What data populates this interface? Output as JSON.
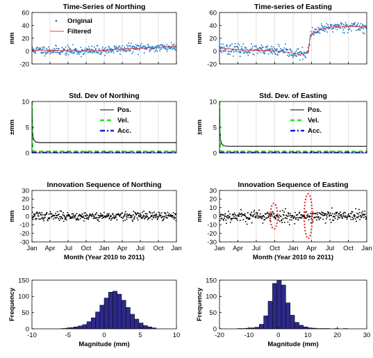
{
  "chart_data": [
    {
      "type": "line",
      "title": "Time-Series of Northing",
      "xlabel": "",
      "ylabel": "mm",
      "xlim": [
        0,
        730
      ],
      "ylim": [
        -20,
        60
      ],
      "yticks": [
        "-20",
        "0",
        "20",
        "40",
        "60"
      ],
      "xtick_count": 9,
      "grid": "vertical",
      "legend": "top-left",
      "series": [
        {
          "name": "Original",
          "style": "dots",
          "color": "#1e78c8",
          "noise": 3.5,
          "seed": 11,
          "trend_x": [
            0,
            120,
            240,
            360,
            480,
            600,
            730
          ],
          "trend_y": [
            1.5,
            1,
            0,
            1,
            4,
            5,
            7
          ]
        },
        {
          "name": "Filtered",
          "style": "line",
          "color": "#e03c3c",
          "x": [
            0,
            120,
            240,
            360,
            480,
            600,
            730
          ],
          "y": [
            1.5,
            1,
            0,
            1,
            4,
            5,
            7
          ]
        }
      ]
    },
    {
      "type": "line",
      "title": "Time-series of Easting",
      "xlabel": "",
      "ylabel": "mm",
      "xlim": [
        0,
        730
      ],
      "ylim": [
        -20,
        60
      ],
      "yticks": [
        "-20",
        "0",
        "20",
        "40",
        "60"
      ],
      "xtick_count": 9,
      "grid": "vertical",
      "series": [
        {
          "style": "dots",
          "color": "#1e78c8",
          "noise": 4,
          "seed": 23,
          "trend_x": [
            0,
            100,
            200,
            300,
            400,
            440,
            450,
            500,
            560,
            620,
            680,
            730
          ],
          "trend_y": [
            5,
            2,
            1,
            0,
            -5,
            -3,
            25,
            33,
            38,
            39,
            38,
            37
          ]
        },
        {
          "style": "line",
          "color": "#e03c3c",
          "x": [
            0,
            100,
            200,
            300,
            400,
            440,
            450,
            500,
            560,
            620,
            680,
            730
          ],
          "y": [
            5,
            2,
            1,
            0,
            -5,
            -3,
            25,
            33,
            38,
            39,
            38,
            37
          ]
        }
      ]
    },
    {
      "type": "line",
      "title": "Std. Dev of Northing",
      "xlabel": "",
      "ylabel": "±mm",
      "xlim": [
        0,
        730
      ],
      "ylim": [
        0,
        10
      ],
      "yticks": [
        "0",
        "5",
        "10"
      ],
      "xtick_count": 9,
      "grid": "vertical",
      "legend": "top-right",
      "series": [
        {
          "name": "Pos.",
          "style": "solid",
          "color": "#000000",
          "x": [
            0,
            2,
            5,
            10,
            20,
            40,
            730
          ],
          "y": [
            9,
            5,
            3.2,
            2.5,
            2.1,
            2.0,
            2.0
          ]
        },
        {
          "name": "Vel.",
          "style": "dashed",
          "color": "#22dd22",
          "x": [
            0,
            0.5,
            1,
            2,
            4,
            10,
            730
          ],
          "y": [
            10,
            9,
            6,
            2,
            0.5,
            0.3,
            0.3
          ]
        },
        {
          "name": "Acc.",
          "style": "dashdot",
          "color": "#1a1adc",
          "x": [
            0,
            730
          ],
          "y": [
            0.05,
            0.05
          ]
        }
      ]
    },
    {
      "type": "line",
      "title": "Std. Dev. of Easting",
      "xlabel": "",
      "ylabel": "±mm",
      "xlim": [
        0,
        730
      ],
      "ylim": [
        0,
        10
      ],
      "yticks": [
        "0",
        "5",
        "10"
      ],
      "xtick_count": 9,
      "grid": "vertical",
      "legend": "top-right",
      "series": [
        {
          "name": "Pos.",
          "style": "solid",
          "color": "#000000",
          "x": [
            0,
            2,
            5,
            10,
            20,
            40,
            730
          ],
          "y": [
            9,
            4.5,
            2.6,
            1.8,
            1.4,
            1.3,
            1.3
          ]
        },
        {
          "name": "Vel.",
          "style": "dashed",
          "color": "#22dd22",
          "x": [
            0,
            0.5,
            1,
            2,
            4,
            10,
            730
          ],
          "y": [
            10,
            9,
            6,
            2,
            0.5,
            0.3,
            0.3
          ]
        },
        {
          "name": "Acc.",
          "style": "dashdot",
          "color": "#1a1adc",
          "x": [
            0,
            730
          ],
          "y": [
            0.05,
            0.05
          ]
        }
      ]
    },
    {
      "type": "scatter",
      "title": "Innovation Sequence of Northing",
      "xlabel": "Month (Year 2010 to 2011)",
      "ylabel": "mm",
      "xlim": [
        0,
        730
      ],
      "ylim": [
        -30,
        30
      ],
      "yticks": [
        "-30",
        "-20",
        "-10",
        "0",
        "10",
        "20",
        "30"
      ],
      "xticks": [
        "Jan",
        "Apr",
        "Jul",
        "Oct",
        "Jan",
        "Apr",
        "Jul",
        "Oct",
        "Jan"
      ],
      "grid": "vertical",
      "series": [
        {
          "style": "dots",
          "color": "#000000",
          "noise": 2.5,
          "seed": 37,
          "trend_x": [
            0,
            730
          ],
          "trend_y": [
            0,
            0
          ]
        }
      ]
    },
    {
      "type": "scatter",
      "title": "Innovation Sequence of Easting",
      "xlabel": "Month (Year 2010 to 2011)",
      "ylabel": "mm",
      "xlim": [
        0,
        730
      ],
      "ylim": [
        -30,
        30
      ],
      "yticks": [
        "-30",
        "-20",
        "-10",
        "0",
        "10",
        "20",
        "30"
      ],
      "xticks": [
        "Jan",
        "Apr",
        "Jul",
        "Oct",
        "Jan",
        "Apr",
        "Jul",
        "Oct",
        "Jan"
      ],
      "grid": "vertical",
      "series": [
        {
          "style": "dots",
          "color": "#000000",
          "noise": 3.5,
          "seed": 53,
          "trend_x": [
            0,
            730
          ],
          "trend_y": [
            0,
            0
          ]
        }
      ],
      "annotations": [
        {
          "shape": "ellipse",
          "color": "#e01818",
          "cx": 270,
          "cy": 0,
          "rx": 18,
          "ry": 15
        },
        {
          "shape": "ellipse",
          "color": "#e01818",
          "cx": 440,
          "cy": 0,
          "rx": 20,
          "ry": 26
        }
      ]
    },
    {
      "type": "bar",
      "title": "",
      "xlabel": "Magnitude (mm)",
      "ylabel": "Frequency",
      "xlim": [
        -10,
        10
      ],
      "ylim": [
        0,
        150
      ],
      "xticks": [
        "-10",
        "-5",
        "0",
        "5",
        "10"
      ],
      "yticks": [
        "0",
        "50",
        "100",
        "150"
      ],
      "bar_color": "#2e2a8a",
      "bins_start": -6,
      "bin_width": 0.6,
      "values": [
        1,
        2,
        4,
        6,
        9,
        13,
        22,
        34,
        52,
        73,
        95,
        113,
        116,
        107,
        88,
        66,
        45,
        30,
        18,
        10,
        6,
        3
      ]
    },
    {
      "type": "bar",
      "title": "",
      "xlabel": "Magnitude (mm)",
      "ylabel": "Frequency",
      "xlim": [
        -20,
        30
      ],
      "ylim": [
        0,
        150
      ],
      "xticks": [
        "-20",
        "-10",
        "0",
        "10",
        "20",
        "30"
      ],
      "yticks": [
        "0",
        "50",
        "100",
        "150"
      ],
      "bar_color": "#2e2a8a",
      "bins_start": -14,
      "bin_width": 1.5,
      "values": [
        1,
        1,
        2,
        3,
        5,
        14,
        40,
        85,
        140,
        150,
        135,
        80,
        42,
        20,
        11,
        6,
        3,
        2,
        1,
        1,
        1,
        0,
        1,
        0,
        1
      ]
    }
  ]
}
